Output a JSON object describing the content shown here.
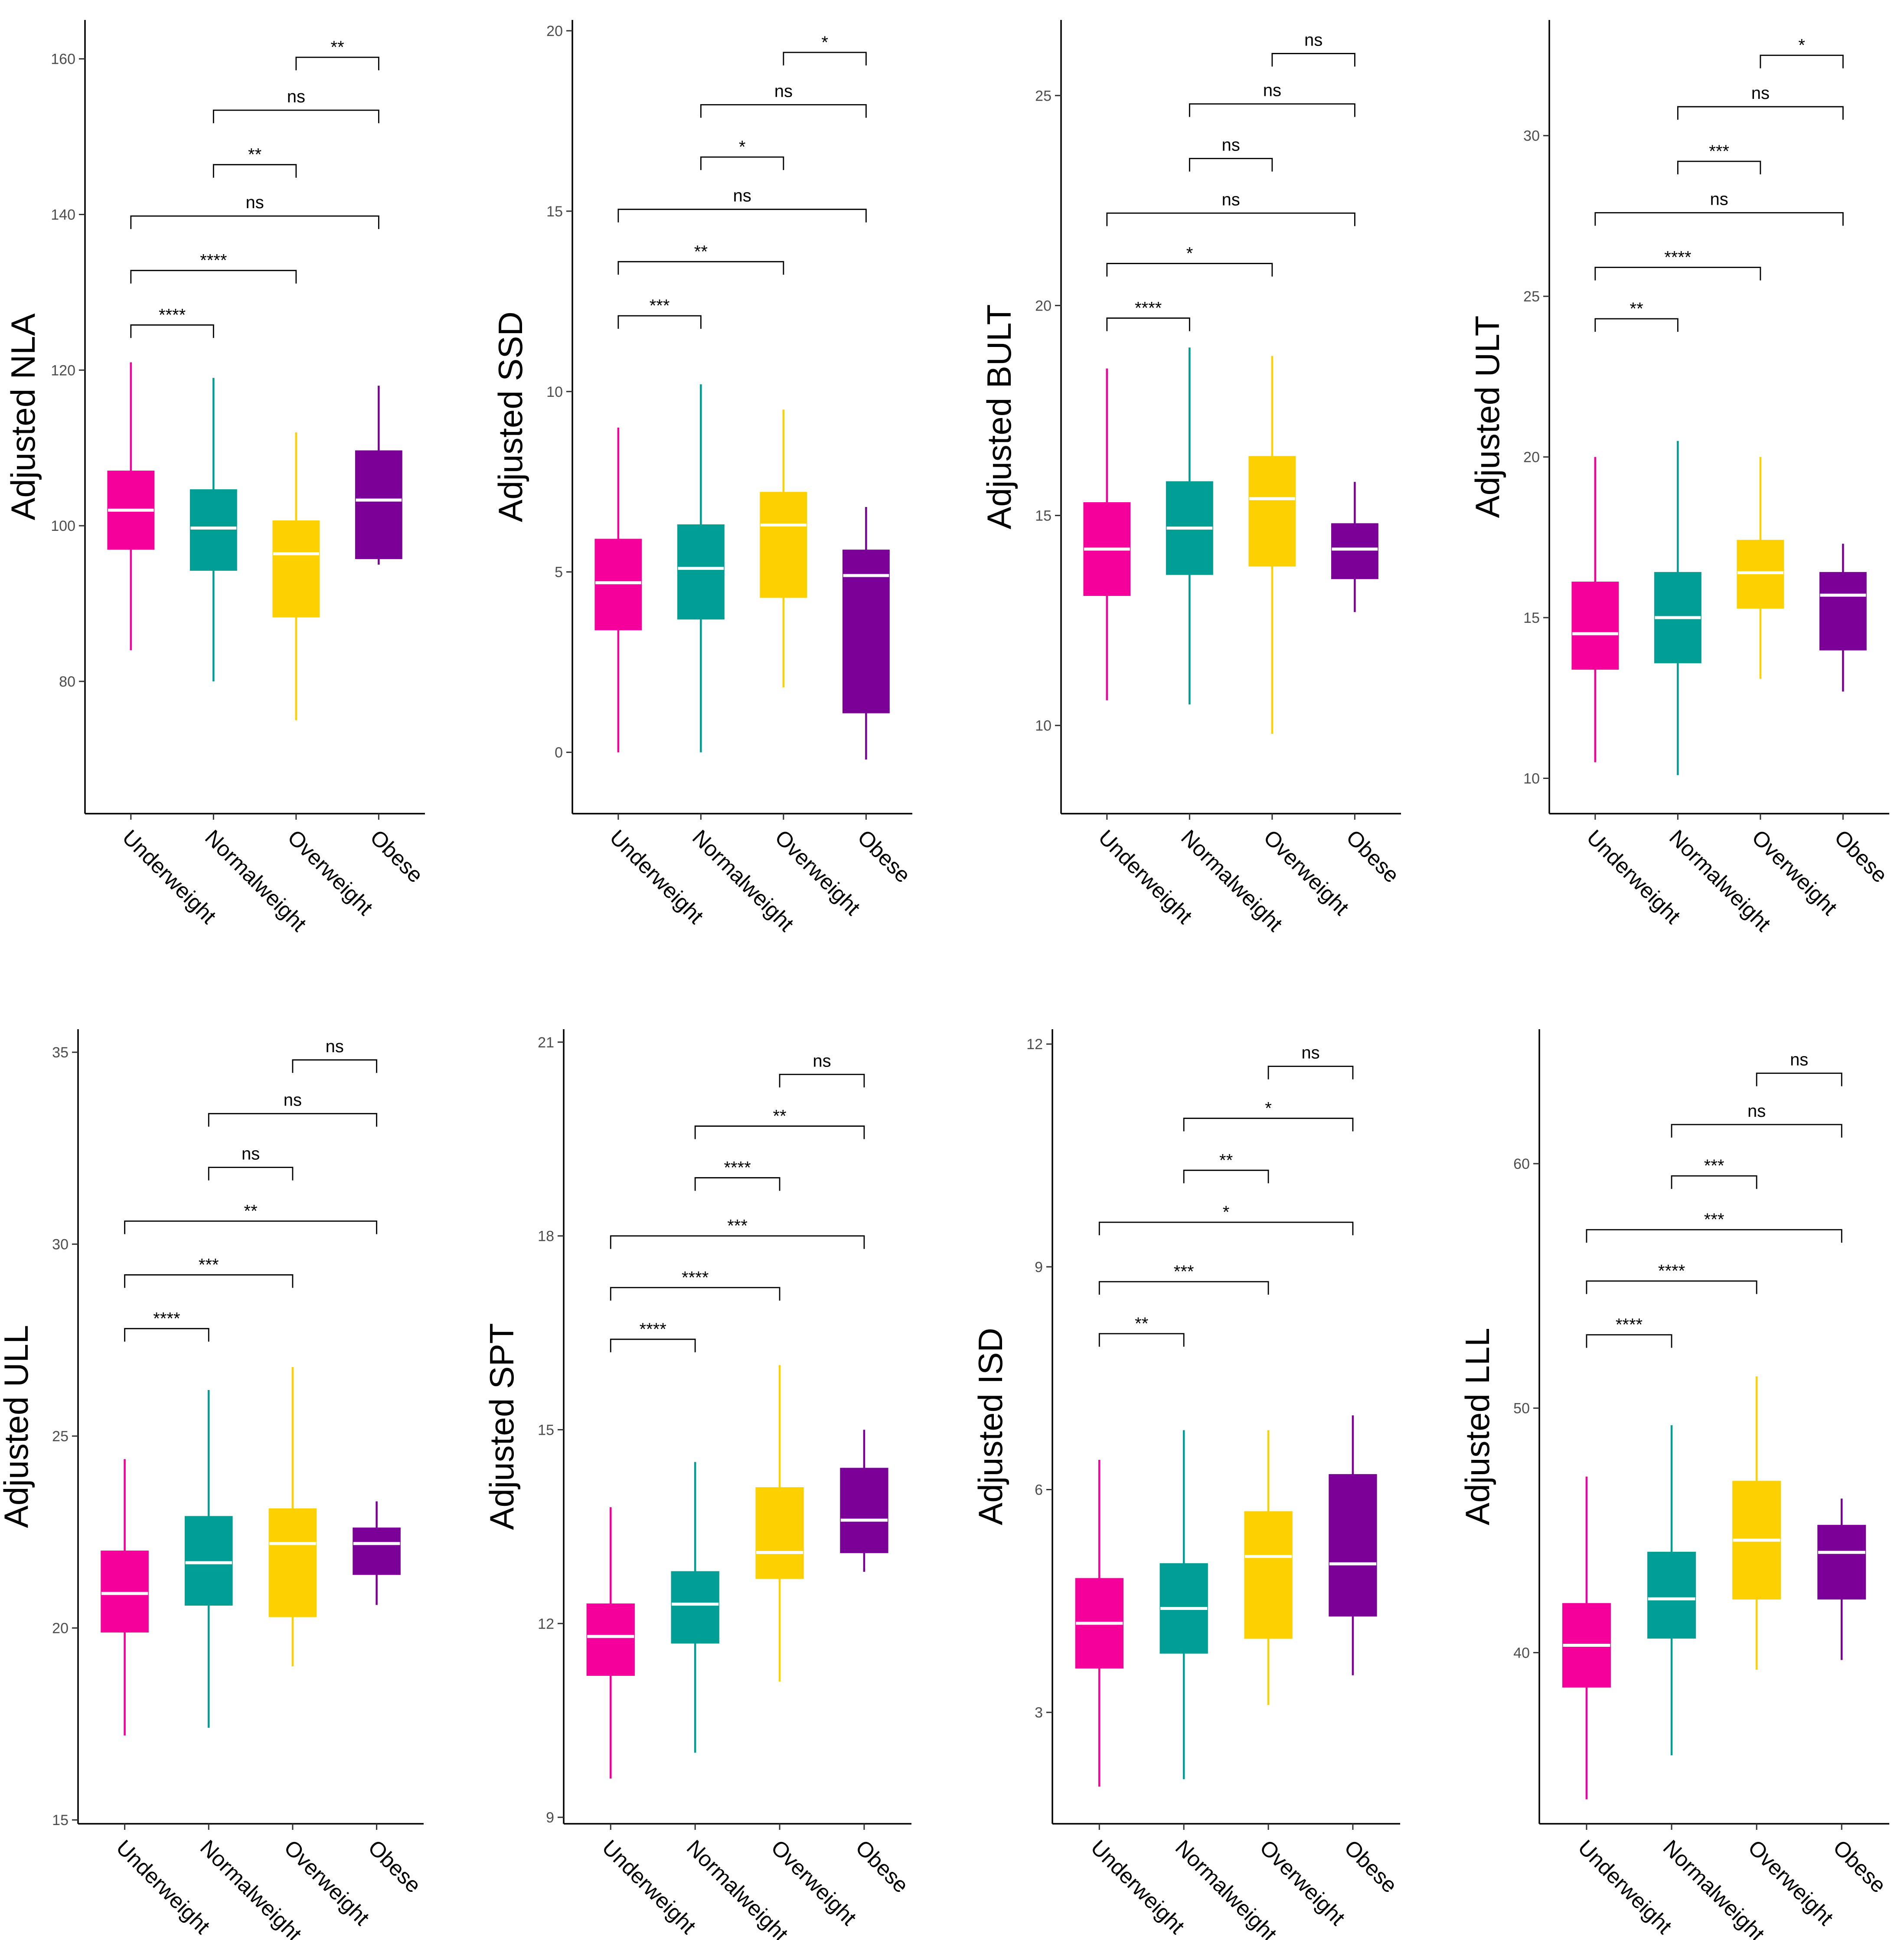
{
  "colors": {
    "Underweight": "#f5009b",
    "Normalweight": "#009e94",
    "Overweight": "#fdd001",
    "Obese": "#7a0098"
  },
  "chart_data": [
    {
      "type": "box",
      "ylabel": "Adjusted NLA",
      "ylim": [
        63,
        165
      ],
      "yticks": [
        80,
        100,
        120,
        140,
        160
      ],
      "categories": [
        "Underweight",
        "Normalweight",
        "Overweight",
        "Obese"
      ],
      "boxes": [
        {
          "category": "Underweight",
          "min": 84,
          "q1": 97,
          "median": 102,
          "q3": 107,
          "max": 121
        },
        {
          "category": "Normalweight",
          "min": 80,
          "q1": 94.3,
          "median": 99.7,
          "q3": 104.6,
          "max": 119
        },
        {
          "category": "Overweight",
          "min": 75,
          "q1": 88.3,
          "median": 96.4,
          "q3": 100.6,
          "max": 112
        },
        {
          "category": "Obese",
          "min": 95,
          "q1": 95.8,
          "median": 103.3,
          "q3": 109.6,
          "max": 118
        }
      ],
      "comparisons": [
        {
          "from": "Underweight",
          "to": "Normalweight",
          "label": "****",
          "y": 125.8
        },
        {
          "from": "Underweight",
          "to": "Overweight",
          "label": "****",
          "y": 132.8
        },
        {
          "from": "Underweight",
          "to": "Obese",
          "label": "ns",
          "y": 139.8
        },
        {
          "from": "Normalweight",
          "to": "Overweight",
          "label": "**",
          "y": 146.4
        },
        {
          "from": "Normalweight",
          "to": "Obese",
          "label": "ns",
          "y": 153.4
        },
        {
          "from": "Overweight",
          "to": "Obese",
          "label": "**",
          "y": 160.2
        }
      ]
    },
    {
      "type": "box",
      "ylabel": "Adjusted SSD",
      "ylim": [
        -1.7,
        20.3
      ],
      "yticks": [
        0,
        5,
        10,
        15,
        20
      ],
      "categories": [
        "Underweight",
        "Normalweight",
        "Overweight",
        "Obese"
      ],
      "boxes": [
        {
          "category": "Underweight",
          "min": 0,
          "q1": 3.4,
          "median": 4.7,
          "q3": 5.9,
          "max": 9
        },
        {
          "category": "Normalweight",
          "min": 0,
          "q1": 3.7,
          "median": 5.1,
          "q3": 6.3,
          "max": 10.2
        },
        {
          "category": "Overweight",
          "min": 1.8,
          "q1": 4.3,
          "median": 6.3,
          "q3": 7.2,
          "max": 9.5
        },
        {
          "category": "Obese",
          "min": -0.2,
          "q1": 1.1,
          "median": 4.9,
          "q3": 5.6,
          "max": 6.8
        }
      ],
      "comparisons": [
        {
          "from": "Underweight",
          "to": "Normalweight",
          "label": "***",
          "y": 12.1
        },
        {
          "from": "Underweight",
          "to": "Overweight",
          "label": "**",
          "y": 13.6
        },
        {
          "from": "Underweight",
          "to": "Obese",
          "label": "ns",
          "y": 15.05
        },
        {
          "from": "Normalweight",
          "to": "Overweight",
          "label": "*",
          "y": 16.5
        },
        {
          "from": "Normalweight",
          "to": "Obese",
          "label": "ns",
          "y": 17.95
        },
        {
          "from": "Overweight",
          "to": "Obese",
          "label": "*",
          "y": 19.4
        }
      ]
    },
    {
      "type": "box",
      "ylabel": "Adjusted BULT",
      "ylim": [
        7.9,
        26.8
      ],
      "yticks": [
        10,
        15,
        20,
        25
      ],
      "categories": [
        "Underweight",
        "Normalweight",
        "Overweight",
        "Obese"
      ],
      "boxes": [
        {
          "category": "Underweight",
          "min": 10.6,
          "q1": 13.1,
          "median": 14.2,
          "q3": 15.3,
          "max": 18.5
        },
        {
          "category": "Normalweight",
          "min": 10.5,
          "q1": 13.6,
          "median": 14.7,
          "q3": 15.8,
          "max": 19
        },
        {
          "category": "Overweight",
          "min": 9.8,
          "q1": 13.8,
          "median": 15.4,
          "q3": 16.4,
          "max": 18.8
        },
        {
          "category": "Obese",
          "min": 12.7,
          "q1": 13.5,
          "median": 14.2,
          "q3": 14.8,
          "max": 15.8
        }
      ],
      "comparisons": [
        {
          "from": "Underweight",
          "to": "Normalweight",
          "label": "****",
          "y": 19.7
        },
        {
          "from": "Underweight",
          "to": "Overweight",
          "label": "*",
          "y": 21.0
        },
        {
          "from": "Underweight",
          "to": "Obese",
          "label": "ns",
          "y": 22.2
        },
        {
          "from": "Normalweight",
          "to": "Overweight",
          "label": "ns",
          "y": 23.5
        },
        {
          "from": "Normalweight",
          "to": "Obese",
          "label": "ns",
          "y": 24.8
        },
        {
          "from": "Overweight",
          "to": "Obese",
          "label": "ns",
          "y": 26.0
        }
      ]
    },
    {
      "type": "box",
      "ylabel": "Adjusted ULT",
      "ylim": [
        8.9,
        33.6
      ],
      "yticks": [
        10,
        15,
        20,
        25,
        30
      ],
      "categories": [
        "Underweight",
        "Normalweight",
        "Overweight",
        "Obese"
      ],
      "boxes": [
        {
          "category": "Underweight",
          "min": 10.5,
          "q1": 13.4,
          "median": 14.5,
          "q3": 16.1,
          "max": 20
        },
        {
          "category": "Normalweight",
          "min": 10.1,
          "q1": 13.6,
          "median": 15,
          "q3": 16.4,
          "max": 20.5
        },
        {
          "category": "Overweight",
          "min": 13.1,
          "q1": 15.3,
          "median": 16.4,
          "q3": 17.4,
          "max": 20
        },
        {
          "category": "Obese",
          "min": 12.7,
          "q1": 14,
          "median": 15.7,
          "q3": 16.4,
          "max": 17.3
        }
      ],
      "comparisons": [
        {
          "from": "Underweight",
          "to": "Normalweight",
          "label": "**",
          "y": 24.3
        },
        {
          "from": "Underweight",
          "to": "Overweight",
          "label": "****",
          "y": 25.9
        },
        {
          "from": "Underweight",
          "to": "Obese",
          "label": "ns",
          "y": 27.6
        },
        {
          "from": "Normalweight",
          "to": "Overweight",
          "label": "***",
          "y": 29.2
        },
        {
          "from": "Normalweight",
          "to": "Obese",
          "label": "ns",
          "y": 30.9
        },
        {
          "from": "Overweight",
          "to": "Obese",
          "label": "*",
          "y": 32.5
        }
      ]
    },
    {
      "type": "box",
      "ylabel": "Adjusted ULL",
      "ylim": [
        14.9,
        35.6
      ],
      "yticks": [
        15,
        20,
        25,
        30,
        35
      ],
      "categories": [
        "Underweight",
        "Normalweight",
        "Overweight",
        "Obese"
      ],
      "boxes": [
        {
          "category": "Underweight",
          "min": 17.2,
          "q1": 19.9,
          "median": 20.9,
          "q3": 22,
          "max": 24.4
        },
        {
          "category": "Normalweight",
          "min": 17.4,
          "q1": 20.6,
          "median": 21.7,
          "q3": 22.9,
          "max": 26.2
        },
        {
          "category": "Overweight",
          "min": 19,
          "q1": 20.3,
          "median": 22.2,
          "q3": 23.1,
          "max": 26.8
        },
        {
          "category": "Obese",
          "min": 20.6,
          "q1": 21.4,
          "median": 22.2,
          "q3": 22.6,
          "max": 23.3
        }
      ],
      "comparisons": [
        {
          "from": "Underweight",
          "to": "Normalweight",
          "label": "****",
          "y": 27.8
        },
        {
          "from": "Underweight",
          "to": "Overweight",
          "label": "***",
          "y": 29.2
        },
        {
          "from": "Underweight",
          "to": "Obese",
          "label": "**",
          "y": 30.6
        },
        {
          "from": "Normalweight",
          "to": "Overweight",
          "label": "ns",
          "y": 32
        },
        {
          "from": "Normalweight",
          "to": "Obese",
          "label": "ns",
          "y": 33.4
        },
        {
          "from": "Overweight",
          "to": "Obese",
          "label": "ns",
          "y": 34.8
        }
      ]
    },
    {
      "type": "box",
      "ylabel": "Adjusted SPT",
      "ylim": [
        8.9,
        21.2
      ],
      "yticks": [
        9,
        12,
        15,
        18,
        21
      ],
      "categories": [
        "Underweight",
        "Normalweight",
        "Overweight",
        "Obese"
      ],
      "boxes": [
        {
          "category": "Underweight",
          "min": 9.6,
          "q1": 11.2,
          "median": 11.8,
          "q3": 12.3,
          "max": 13.8
        },
        {
          "category": "Normalweight",
          "min": 10,
          "q1": 11.7,
          "median": 12.3,
          "q3": 12.8,
          "max": 14.5
        },
        {
          "category": "Overweight",
          "min": 11.1,
          "q1": 12.7,
          "median": 13.1,
          "q3": 14.1,
          "max": 16
        },
        {
          "category": "Obese",
          "min": 12.8,
          "q1": 13.1,
          "median": 13.6,
          "q3": 14.4,
          "max": 15
        }
      ],
      "comparisons": [
        {
          "from": "Underweight",
          "to": "Normalweight",
          "label": "****",
          "y": 16.4
        },
        {
          "from": "Underweight",
          "to": "Overweight",
          "label": "****",
          "y": 17.2
        },
        {
          "from": "Underweight",
          "to": "Obese",
          "label": "***",
          "y": 18.0
        },
        {
          "from": "Normalweight",
          "to": "Overweight",
          "label": "****",
          "y": 18.9
        },
        {
          "from": "Normalweight",
          "to": "Obese",
          "label": "**",
          "y": 19.7
        },
        {
          "from": "Overweight",
          "to": "Obese",
          "label": "ns",
          "y": 20.5
        }
      ]
    },
    {
      "type": "box",
      "ylabel": "Adjusted ISD",
      "ylim": [
        1.5,
        12.2
      ],
      "yticks": [
        3,
        6,
        9,
        12
      ],
      "categories": [
        "Underweight",
        "Normalweight",
        "Overweight",
        "Obese"
      ],
      "boxes": [
        {
          "category": "Underweight",
          "min": 2,
          "q1": 3.6,
          "median": 4.2,
          "q3": 4.8,
          "max": 6.4
        },
        {
          "category": "Normalweight",
          "min": 2.1,
          "q1": 3.8,
          "median": 4.4,
          "q3": 5,
          "max": 6.8
        },
        {
          "category": "Overweight",
          "min": 3.1,
          "q1": 4,
          "median": 5.1,
          "q3": 5.7,
          "max": 6.8
        },
        {
          "category": "Obese",
          "min": 3.5,
          "q1": 4.3,
          "median": 5,
          "q3": 6.2,
          "max": 7
        }
      ],
      "comparisons": [
        {
          "from": "Underweight",
          "to": "Normalweight",
          "label": "**",
          "y": 8.1
        },
        {
          "from": "Underweight",
          "to": "Overweight",
          "label": "***",
          "y": 8.8
        },
        {
          "from": "Underweight",
          "to": "Obese",
          "label": "*",
          "y": 9.6
        },
        {
          "from": "Normalweight",
          "to": "Overweight",
          "label": "**",
          "y": 10.3
        },
        {
          "from": "Normalweight",
          "to": "Obese",
          "label": "*",
          "y": 11.0
        },
        {
          "from": "Overweight",
          "to": "Obese",
          "label": "ns",
          "y": 11.7
        }
      ]
    },
    {
      "type": "box",
      "ylabel": "Adjusted LLL",
      "ylim": [
        33,
        65.5
      ],
      "yticks": [
        40,
        50,
        60
      ],
      "categories": [
        "Underweight",
        "Normalweight",
        "Overweight",
        "Obese"
      ],
      "boxes": [
        {
          "category": "Underweight",
          "min": 34,
          "q1": 38.6,
          "median": 40.3,
          "q3": 42,
          "max": 47.2
        },
        {
          "category": "Normalweight",
          "min": 35.8,
          "q1": 40.6,
          "median": 42.2,
          "q3": 44.1,
          "max": 49.3
        },
        {
          "category": "Overweight",
          "min": 39.3,
          "q1": 42.2,
          "median": 44.6,
          "q3": 47,
          "max": 51.3
        },
        {
          "category": "Obese",
          "min": 39.7,
          "q1": 42.2,
          "median": 44.1,
          "q3": 45.2,
          "max": 46.3
        }
      ],
      "comparisons": [
        {
          "from": "Underweight",
          "to": "Normalweight",
          "label": "****",
          "y": 53
        },
        {
          "from": "Underweight",
          "to": "Overweight",
          "label": "****",
          "y": 55.2
        },
        {
          "from": "Underweight",
          "to": "Obese",
          "label": "***",
          "y": 57.3
        },
        {
          "from": "Normalweight",
          "to": "Overweight",
          "label": "***",
          "y": 59.5
        },
        {
          "from": "Normalweight",
          "to": "Obese",
          "label": "ns",
          "y": 61.6
        },
        {
          "from": "Overweight",
          "to": "Obese",
          "label": "ns",
          "y": 63.7
        }
      ]
    }
  ]
}
